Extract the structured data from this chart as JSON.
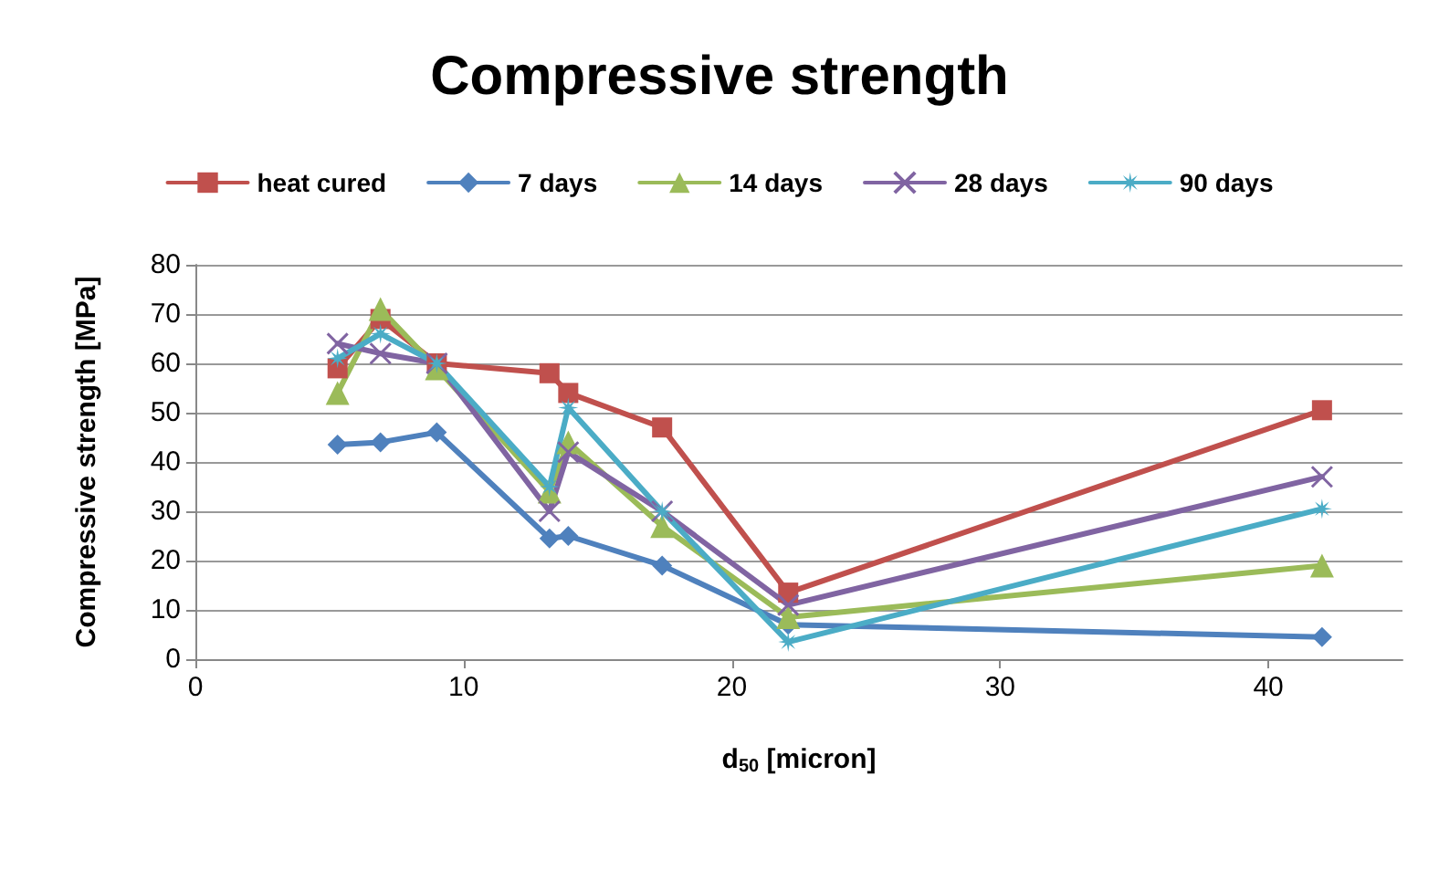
{
  "chart_data": {
    "type": "line",
    "title": "Compressive strength",
    "xlabel": "d$_{50}$ [micron]",
    "ylabel": "Compressive strength [MPa]",
    "x": [
      5.3,
      6.9,
      9.0,
      13.2,
      13.9,
      17.4,
      22.1,
      42
    ],
    "series": [
      {
        "name": "heat cured",
        "color": "#c0504d",
        "marker": "square",
        "values": [
          59,
          69,
          60,
          58,
          54,
          47,
          13.5,
          50.5
        ]
      },
      {
        "name": "7 days",
        "color": "#4f81bd",
        "marker": "diamond",
        "values": [
          43.5,
          44,
          46,
          24.5,
          25,
          19,
          7,
          4.5
        ]
      },
      {
        "name": "14 days",
        "color": "#9bbb59",
        "marker": "triangle",
        "values": [
          54,
          71,
          59,
          34,
          44,
          27,
          8.5,
          19
        ]
      },
      {
        "name": "28 days",
        "color": "#8064a2",
        "marker": "cross",
        "values": [
          64,
          62,
          60,
          30,
          42,
          30,
          11,
          37
        ]
      },
      {
        "name": "90 days",
        "color": "#4bacc6",
        "marker": "star",
        "values": [
          61,
          66,
          60,
          35,
          51,
          30,
          3.5,
          30.5
        ]
      }
    ],
    "xlim": [
      0,
      45
    ],
    "xticks": [
      0,
      10,
      20,
      30,
      40
    ],
    "ylim": [
      0,
      80
    ],
    "yticks": [
      0,
      10,
      20,
      30,
      40,
      50,
      60,
      70,
      80
    ],
    "grid": "y",
    "legend": "top",
    "line_style": "solid"
  }
}
